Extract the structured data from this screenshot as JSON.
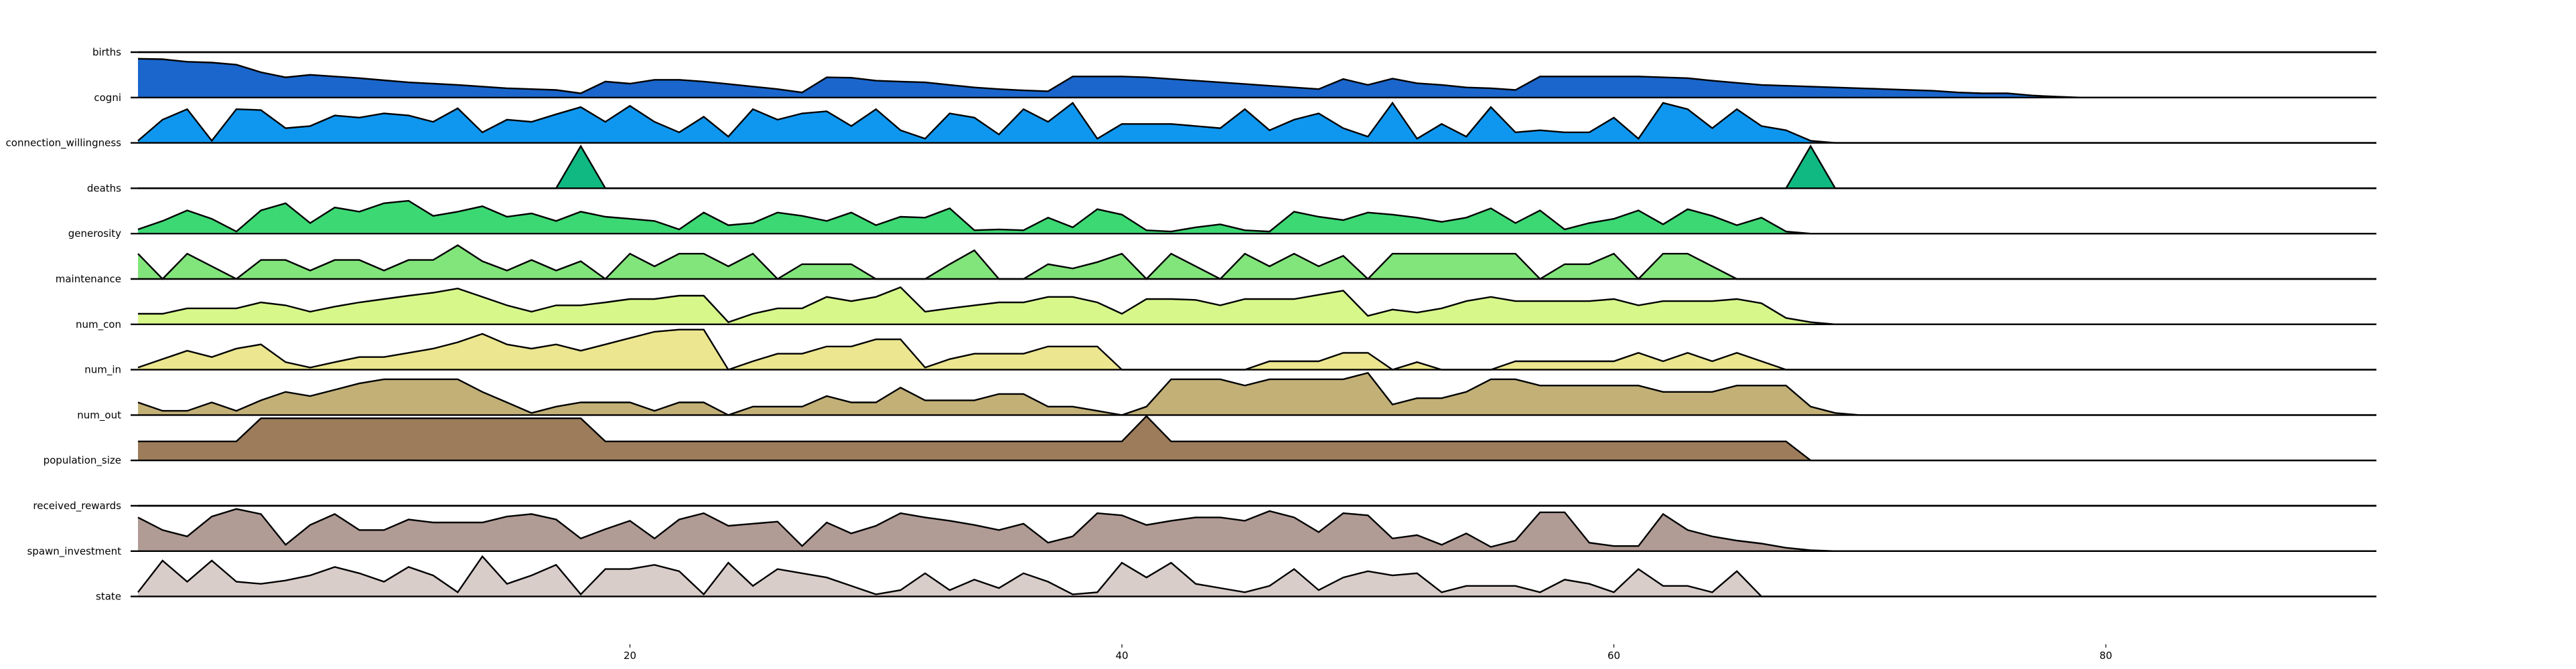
{
  "chart_data": {
    "type": "area",
    "title": "",
    "xlabel": "",
    "ylabel": "",
    "xlim": [
      -0.3,
      91
    ],
    "xticks": [
      20,
      40,
      60,
      80
    ],
    "grid": false,
    "legend": "none",
    "series": [
      {
        "name": "births",
        "color": "#ffffff",
        "values": [
          0,
          0,
          0,
          0,
          0,
          0,
          0,
          0,
          0,
          0,
          0,
          0,
          0,
          0,
          0,
          0,
          0,
          0,
          0,
          0,
          0,
          0,
          0,
          0,
          0,
          0,
          0,
          0,
          0,
          0,
          0,
          0,
          0,
          0,
          0,
          0,
          0,
          0,
          0,
          0,
          0,
          0,
          0,
          0,
          0,
          0,
          0,
          0,
          0,
          0,
          0,
          0,
          0,
          0,
          0,
          0,
          0,
          0,
          0,
          0,
          0,
          0,
          0,
          0,
          0,
          0,
          0,
          0,
          0,
          0,
          0,
          0,
          0,
          0,
          0,
          0,
          0,
          0,
          0,
          0,
          0,
          0,
          0,
          0,
          0,
          0,
          0,
          0,
          0,
          0,
          0
        ]
      },
      {
        "name": "cogni",
        "color": "#1a66cc",
        "values": [
          0.92,
          0.91,
          0.85,
          0.83,
          0.78,
          0.6,
          0.48,
          0.54,
          0.5,
          0.46,
          0.41,
          0.36,
          0.33,
          0.3,
          0.26,
          0.22,
          0.2,
          0.18,
          0.1,
          0.38,
          0.33,
          0.42,
          0.42,
          0.38,
          0.32,
          0.26,
          0.2,
          0.12,
          0.48,
          0.47,
          0.4,
          0.38,
          0.36,
          0.3,
          0.24,
          0.2,
          0.17,
          0.15,
          0.5,
          0.5,
          0.5,
          0.48,
          0.44,
          0.4,
          0.36,
          0.32,
          0.28,
          0.24,
          0.2,
          0.44,
          0.3,
          0.45,
          0.34,
          0.3,
          0.24,
          0.22,
          0.18,
          0.5,
          0.5,
          0.5,
          0.5,
          0.5,
          0.48,
          0.46,
          0.4,
          0.35,
          0.3,
          0.28,
          0.26,
          0.24,
          0.22,
          0.2,
          0.18,
          0.16,
          0.12,
          0.1,
          0.1,
          0.05,
          0.02,
          0,
          0,
          0,
          0,
          0,
          0,
          0,
          0,
          0,
          0,
          0,
          0
        ]
      },
      {
        "name": "connection_willingness",
        "color": "#0f97f0",
        "values": [
          0.05,
          0.55,
          0.8,
          0.05,
          0.8,
          0.78,
          0.35,
          0.4,
          0.65,
          0.6,
          0.7,
          0.65,
          0.5,
          0.82,
          0.25,
          0.55,
          0.5,
          0.68,
          0.85,
          0.5,
          0.88,
          0.5,
          0.25,
          0.62,
          0.15,
          0.8,
          0.55,
          0.7,
          0.75,
          0.4,
          0.8,
          0.3,
          0.1,
          0.7,
          0.6,
          0.2,
          0.8,
          0.5,
          0.95,
          0.1,
          0.45,
          0.45,
          0.45,
          0.4,
          0.35,
          0.8,
          0.3,
          0.55,
          0.7,
          0.35,
          0.15,
          0.95,
          0.1,
          0.45,
          0.15,
          0.85,
          0.25,
          0.3,
          0.25,
          0.25,
          0.6,
          0.1,
          0.95,
          0.8,
          0.35,
          0.8,
          0.4,
          0.3,
          0.05,
          0,
          0,
          0,
          0,
          0,
          0,
          0,
          0,
          0,
          0,
          0,
          0,
          0,
          0,
          0,
          0,
          0,
          0,
          0,
          0,
          0,
          0
        ]
      },
      {
        "name": "deaths",
        "color": "#10b982",
        "values": [
          0,
          0,
          0,
          0,
          0,
          0,
          0,
          0,
          0,
          0,
          0,
          0,
          0,
          0,
          0,
          0,
          0,
          0,
          1,
          0,
          0,
          0,
          0,
          0,
          0,
          0,
          0,
          0,
          0,
          0,
          0,
          0,
          0,
          0,
          0,
          0,
          0,
          0,
          0,
          0,
          0,
          0,
          0,
          0,
          0,
          0,
          0,
          0,
          0,
          0,
          0,
          0,
          0,
          0,
          0,
          0,
          0,
          0,
          0,
          0,
          0,
          0,
          0,
          0,
          0,
          0,
          0,
          0,
          1,
          0,
          0,
          0,
          0,
          0,
          0,
          0,
          0,
          0,
          0,
          0,
          0,
          0,
          0,
          0,
          0,
          0,
          0,
          0,
          0,
          0,
          0
        ]
      },
      {
        "name": "generosity",
        "color": "#3cd873",
        "values": [
          0.1,
          0.3,
          0.55,
          0.35,
          0.05,
          0.55,
          0.72,
          0.25,
          0.62,
          0.52,
          0.72,
          0.78,
          0.42,
          0.52,
          0.65,
          0.4,
          0.48,
          0.3,
          0.52,
          0.4,
          0.35,
          0.3,
          0.1,
          0.5,
          0.2,
          0.25,
          0.5,
          0.42,
          0.3,
          0.5,
          0.2,
          0.4,
          0.38,
          0.6,
          0.08,
          0.1,
          0.08,
          0.38,
          0.15,
          0.58,
          0.45,
          0.08,
          0.05,
          0.15,
          0.22,
          0.08,
          0.05,
          0.52,
          0.4,
          0.32,
          0.5,
          0.45,
          0.38,
          0.28,
          0.38,
          0.6,
          0.25,
          0.55,
          0.1,
          0.25,
          0.35,
          0.55,
          0.22,
          0.58,
          0.42,
          0.2,
          0.38,
          0.05,
          0,
          0,
          0,
          0,
          0,
          0,
          0,
          0,
          0,
          0,
          0,
          0,
          0,
          0,
          0,
          0,
          0,
          0,
          0,
          0,
          0,
          0,
          0
        ]
      },
      {
        "name": "maintenance",
        "color": "#82e57b",
        "values": [
          0.6,
          0,
          0.6,
          0.3,
          0,
          0.45,
          0.45,
          0.2,
          0.45,
          0.45,
          0.2,
          0.45,
          0.45,
          0.8,
          0.42,
          0.2,
          0.45,
          0.2,
          0.42,
          0,
          0.6,
          0.3,
          0.6,
          0.6,
          0.3,
          0.6,
          0,
          0.35,
          0.35,
          0.35,
          0,
          0,
          0,
          0.35,
          0.68,
          0,
          0,
          0.35,
          0.25,
          0.4,
          0.6,
          0,
          0.6,
          0.3,
          0,
          0.6,
          0.3,
          0.6,
          0.3,
          0.55,
          0,
          0.6,
          0.6,
          0.6,
          0.6,
          0.6,
          0.6,
          0,
          0.35,
          0.35,
          0.6,
          0,
          0.6,
          0.6,
          0.3,
          0,
          0,
          0,
          0,
          0,
          0,
          0,
          0,
          0,
          0,
          0,
          0,
          0,
          0,
          0,
          0,
          0,
          0,
          0,
          0,
          0,
          0,
          0,
          0,
          0,
          0
        ]
      },
      {
        "name": "num_con",
        "color": "#d7f78b",
        "values": [
          0.25,
          0.25,
          0.38,
          0.38,
          0.38,
          0.52,
          0.45,
          0.3,
          0.42,
          0.52,
          0.6,
          0.68,
          0.75,
          0.85,
          0.65,
          0.45,
          0.3,
          0.45,
          0.45,
          0.52,
          0.6,
          0.6,
          0.68,
          0.68,
          0.05,
          0.25,
          0.38,
          0.38,
          0.65,
          0.55,
          0.65,
          0.88,
          0.3,
          0.38,
          0.45,
          0.52,
          0.52,
          0.65,
          0.65,
          0.52,
          0.25,
          0.6,
          0.6,
          0.58,
          0.45,
          0.6,
          0.6,
          0.6,
          0.7,
          0.8,
          0.2,
          0.35,
          0.28,
          0.38,
          0.55,
          0.65,
          0.55,
          0.55,
          0.55,
          0.55,
          0.6,
          0.45,
          0.55,
          0.55,
          0.55,
          0.6,
          0.5,
          0.15,
          0.05,
          0,
          0,
          0,
          0,
          0,
          0,
          0,
          0,
          0,
          0,
          0,
          0,
          0,
          0,
          0,
          0,
          0,
          0,
          0,
          0,
          0,
          0
        ]
      },
      {
        "name": "num_in",
        "color": "#ebe68f",
        "values": [
          0.05,
          0.25,
          0.45,
          0.3,
          0.5,
          0.6,
          0.18,
          0.05,
          0.18,
          0.3,
          0.3,
          0.4,
          0.5,
          0.65,
          0.85,
          0.6,
          0.5,
          0.6,
          0.45,
          0.6,
          0.75,
          0.9,
          0.95,
          0.95,
          0,
          0.2,
          0.38,
          0.38,
          0.55,
          0.55,
          0.72,
          0.72,
          0.05,
          0.25,
          0.38,
          0.38,
          0.38,
          0.55,
          0.55,
          0.55,
          0,
          0,
          0,
          0,
          0,
          0,
          0.2,
          0.2,
          0.2,
          0.4,
          0.4,
          0,
          0.18,
          0,
          0,
          0,
          0.2,
          0.2,
          0.2,
          0.2,
          0.2,
          0.4,
          0.2,
          0.4,
          0.2,
          0.4,
          0.2,
          0,
          0,
          0,
          0,
          0,
          0,
          0,
          0,
          0,
          0,
          0,
          0,
          0,
          0,
          0,
          0,
          0,
          0,
          0,
          0,
          0,
          0,
          0,
          0
        ]
      },
      {
        "name": "num_out",
        "color": "#c2b077",
        "values": [
          0.3,
          0.1,
          0.1,
          0.3,
          0.1,
          0.35,
          0.55,
          0.45,
          0.6,
          0.75,
          0.85,
          0.85,
          0.85,
          0.85,
          0.55,
          0.3,
          0.05,
          0.2,
          0.3,
          0.3,
          0.3,
          0.1,
          0.3,
          0.3,
          0,
          0.2,
          0.2,
          0.2,
          0.45,
          0.3,
          0.3,
          0.65,
          0.35,
          0.35,
          0.35,
          0.5,
          0.5,
          0.2,
          0.2,
          0.1,
          0,
          0.2,
          0.85,
          0.85,
          0.85,
          0.7,
          0.85,
          0.85,
          0.85,
          0.85,
          1,
          0.25,
          0.4,
          0.4,
          0.55,
          0.85,
          0.85,
          0.7,
          0.7,
          0.7,
          0.7,
          0.7,
          0.55,
          0.55,
          0.55,
          0.7,
          0.7,
          0.7,
          0.2,
          0.05,
          0,
          0,
          0,
          0,
          0,
          0,
          0,
          0,
          0,
          0,
          0,
          0,
          0,
          0,
          0,
          0,
          0,
          0,
          0,
          0,
          0
        ]
      },
      {
        "name": "population_size",
        "color": "#9c7c5a",
        "values": [
          0.45,
          0.45,
          0.45,
          0.45,
          0.45,
          1,
          1,
          1,
          1,
          1,
          1,
          1,
          1,
          1,
          1,
          1,
          1,
          1,
          1,
          0.45,
          0.45,
          0.45,
          0.45,
          0.45,
          0.45,
          0.45,
          0.45,
          0.45,
          0.45,
          0.45,
          0.45,
          0.45,
          0.45,
          0.45,
          0.45,
          0.45,
          0.45,
          0.45,
          0.45,
          0.45,
          0.45,
          1.05,
          0.45,
          0.45,
          0.45,
          0.45,
          0.45,
          0.45,
          0.45,
          0.45,
          0.45,
          0.45,
          0.45,
          0.45,
          0.45,
          0.45,
          0.45,
          0.45,
          0.45,
          0.45,
          0.45,
          0.45,
          0.45,
          0.45,
          0.45,
          0.45,
          0.45,
          0.45,
          0,
          0,
          0,
          0,
          0,
          0,
          0,
          0,
          0,
          0,
          0,
          0,
          0,
          0,
          0,
          0,
          0,
          0,
          0,
          0,
          0,
          0,
          0
        ]
      },
      {
        "name": "received_rewards",
        "color": "#ffffff",
        "values": [
          0,
          0,
          0,
          0,
          0,
          0,
          0,
          0,
          0,
          0,
          0,
          0,
          0,
          0,
          0,
          0,
          0,
          0,
          0,
          0,
          0,
          0,
          0,
          0,
          0,
          0,
          0,
          0,
          0,
          0,
          0,
          0,
          0,
          0,
          0,
          0,
          0,
          0,
          0,
          0,
          0,
          0,
          0,
          0,
          0,
          0,
          0,
          0,
          0,
          0,
          0,
          0,
          0,
          0,
          0,
          0,
          0,
          0,
          0,
          0,
          0,
          0,
          0,
          0,
          0,
          0,
          0,
          0,
          0,
          0,
          0,
          0,
          0,
          0,
          0,
          0,
          0,
          0,
          0,
          0,
          0,
          0,
          0,
          0,
          0,
          0,
          0,
          0,
          0,
          0,
          0
        ]
      },
      {
        "name": "spawn_investment",
        "color": "#b19b95",
        "values": [
          0.8,
          0.5,
          0.35,
          0.82,
          1,
          0.88,
          0.15,
          0.62,
          0.88,
          0.5,
          0.5,
          0.75,
          0.68,
          0.68,
          0.68,
          0.82,
          0.88,
          0.75,
          0.3,
          0.52,
          0.72,
          0.3,
          0.75,
          0.9,
          0.6,
          0.65,
          0.7,
          0.12,
          0.68,
          0.42,
          0.6,
          0.9,
          0.8,
          0.72,
          0.62,
          0.5,
          0.65,
          0.2,
          0.35,
          0.9,
          0.85,
          0.62,
          0.72,
          0.8,
          0.8,
          0.72,
          0.95,
          0.8,
          0.45,
          0.9,
          0.85,
          0.3,
          0.38,
          0.15,
          0.42,
          0.1,
          0.25,
          0.92,
          0.92,
          0.2,
          0.12,
          0.12,
          0.88,
          0.5,
          0.35,
          0.25,
          0.18,
          0.08,
          0.02,
          0,
          0,
          0,
          0,
          0,
          0,
          0,
          0,
          0,
          0,
          0,
          0,
          0,
          0,
          0,
          0,
          0,
          0,
          0,
          0,
          0,
          0
        ]
      },
      {
        "name": "state",
        "color": "#d9cdca",
        "values": [
          0.1,
          0.85,
          0.35,
          0.85,
          0.35,
          0.3,
          0.38,
          0.5,
          0.7,
          0.55,
          0.35,
          0.7,
          0.5,
          0.1,
          0.95,
          0.3,
          0.5,
          0.75,
          0.05,
          0.65,
          0.65,
          0.75,
          0.6,
          0.05,
          0.8,
          0.25,
          0.65,
          0.55,
          0.45,
          0.25,
          0.05,
          0.15,
          0.55,
          0.15,
          0.4,
          0.2,
          0.55,
          0.35,
          0.05,
          0.1,
          0.8,
          0.45,
          0.8,
          0.3,
          0.2,
          0.1,
          0.25,
          0.65,
          0.15,
          0.45,
          0.6,
          0.5,
          0.55,
          0.1,
          0.25,
          0.25,
          0.25,
          0.1,
          0.4,
          0.3,
          0.1,
          0.65,
          0.25,
          0.25,
          0.1,
          0.6,
          0,
          0,
          0,
          0,
          0,
          0,
          0,
          0,
          0,
          0,
          0,
          0,
          0,
          0,
          0,
          0,
          0,
          0,
          0,
          0,
          0,
          0,
          0,
          0,
          0
        ]
      }
    ]
  }
}
